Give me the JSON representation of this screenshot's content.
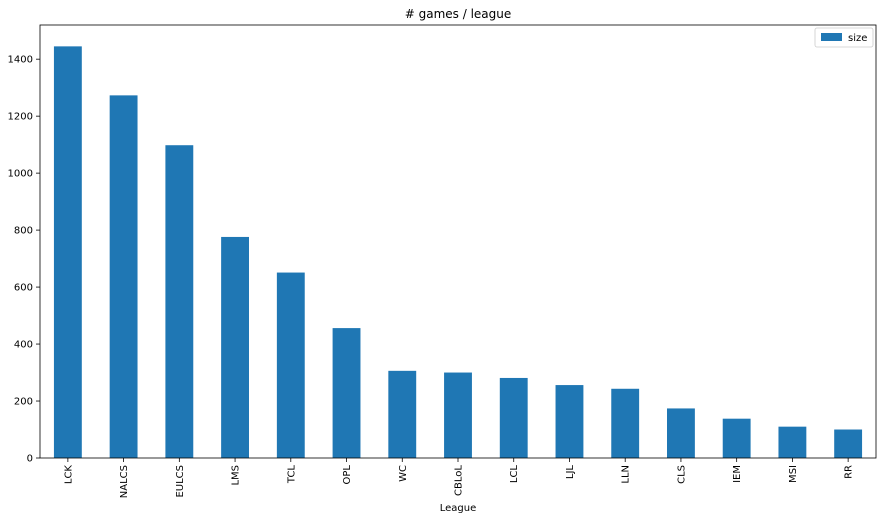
{
  "chart_data": {
    "type": "bar",
    "title": "# games / league",
    "xlabel": "League",
    "ylabel": "",
    "categories": [
      "LCK",
      "NALCS",
      "EULCS",
      "LMS",
      "TCL",
      "OPL",
      "WC",
      "CBLoL",
      "LCL",
      "LJL",
      "LLN",
      "CLS",
      "IEM",
      "MSI",
      "RR"
    ],
    "series": [
      {
        "name": "size",
        "values": [
          1445,
          1273,
          1098,
          776,
          651,
          456,
          306,
          300,
          281,
          256,
          243,
          174,
          138,
          110,
          100
        ]
      }
    ],
    "ylim": [
      0,
      1520
    ],
    "yticks": [
      0,
      200,
      400,
      600,
      800,
      1000,
      1200,
      1400
    ],
    "grid": false,
    "legend_position": "top-right",
    "colors": {
      "bar": "#1f77b4",
      "axis": "#000000",
      "background": "#ffffff"
    }
  }
}
